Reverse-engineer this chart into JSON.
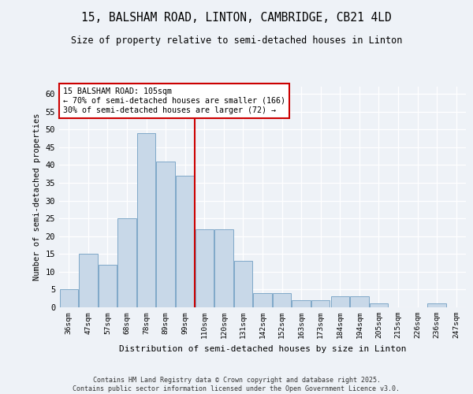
{
  "title_line1": "15, BALSHAM ROAD, LINTON, CAMBRIDGE, CB21 4LD",
  "title_line2": "Size of property relative to semi-detached houses in Linton",
  "xlabel": "Distribution of semi-detached houses by size in Linton",
  "ylabel": "Number of semi-detached properties",
  "bar_labels": [
    "36sqm",
    "47sqm",
    "57sqm",
    "68sqm",
    "78sqm",
    "89sqm",
    "99sqm",
    "110sqm",
    "120sqm",
    "131sqm",
    "142sqm",
    "152sqm",
    "163sqm",
    "173sqm",
    "184sqm",
    "194sqm",
    "205sqm",
    "215sqm",
    "226sqm",
    "236sqm",
    "247sqm"
  ],
  "bar_values": [
    5,
    15,
    12,
    25,
    49,
    41,
    37,
    22,
    22,
    13,
    4,
    4,
    2,
    2,
    3,
    3,
    1,
    0,
    0,
    1,
    0
  ],
  "bar_color": "#c8d8e8",
  "bar_edge_color": "#7fa8c8",
  "line_color": "#cc0000",
  "pct_smaller": 70,
  "count_smaller": 166,
  "pct_larger": 30,
  "count_larger": 72,
  "ylim": [
    0,
    62
  ],
  "yticks": [
    0,
    5,
    10,
    15,
    20,
    25,
    30,
    35,
    40,
    45,
    50,
    55,
    60
  ],
  "footer_line1": "Contains HM Land Registry data © Crown copyright and database right 2025.",
  "footer_line2": "Contains public sector information licensed under the Open Government Licence v3.0.",
  "background_color": "#eef2f7",
  "grid_color": "#ffffff"
}
